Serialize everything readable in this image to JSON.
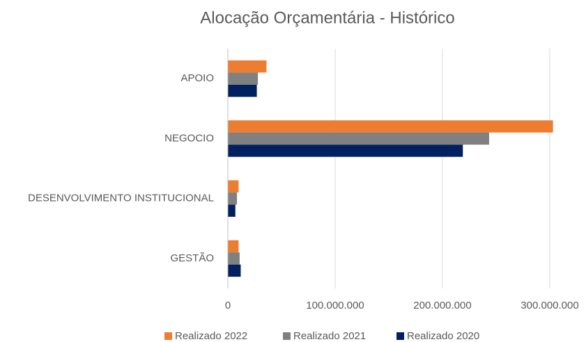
{
  "chart_data": {
    "type": "hbar",
    "title": "Alocação Orçamentária -  Histórico",
    "categories": [
      "APOIO",
      "NEGOCIO",
      "DESENVOLVIMENTO INSTITUCIONAL",
      "GESTÃO"
    ],
    "series": [
      {
        "name": "Realizado 2022",
        "color": "#ed7d31",
        "values": [
          36000000,
          303000000,
          10000000,
          10000000
        ]
      },
      {
        "name": "Realizado 2021",
        "color": "#808080",
        "values": [
          28000000,
          243500000,
          8500000,
          11000000
        ]
      },
      {
        "name": "Realizado 2020",
        "color": "#002060",
        "values": [
          27000000,
          219000000,
          7000000,
          12000000
        ]
      }
    ],
    "xlim": [
      0,
      300000000
    ],
    "xticks": [
      0,
      {
        "value": 100000000,
        "label": "100.000.000"
      },
      {
        "value": 200000000,
        "label": "200.000.000"
      },
      {
        "value": 300000000,
        "label": "300.000.000"
      }
    ],
    "grid": true,
    "legend": "bottom"
  }
}
